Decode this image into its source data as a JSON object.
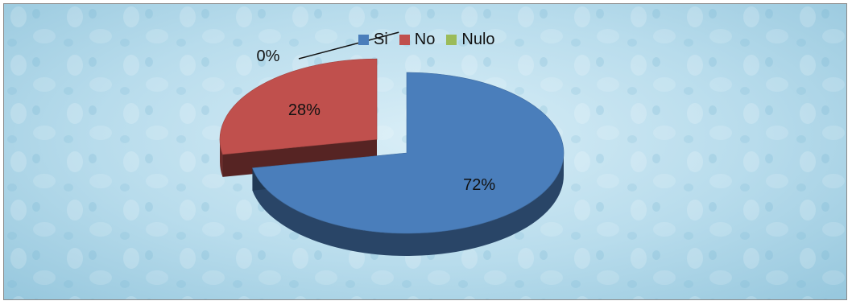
{
  "chart_data": {
    "type": "pie",
    "title": "",
    "style": "3d-exploded",
    "legend_position": "top",
    "series": [
      {
        "name": "Si",
        "value": 72,
        "label": "72%",
        "color": "#4a7ebb"
      },
      {
        "name": "No",
        "value": 28,
        "label": "28%",
        "color": "#c0504d"
      },
      {
        "name": "Nulo",
        "value": 0,
        "label": "0%",
        "color": "#9bbb59"
      }
    ]
  }
}
